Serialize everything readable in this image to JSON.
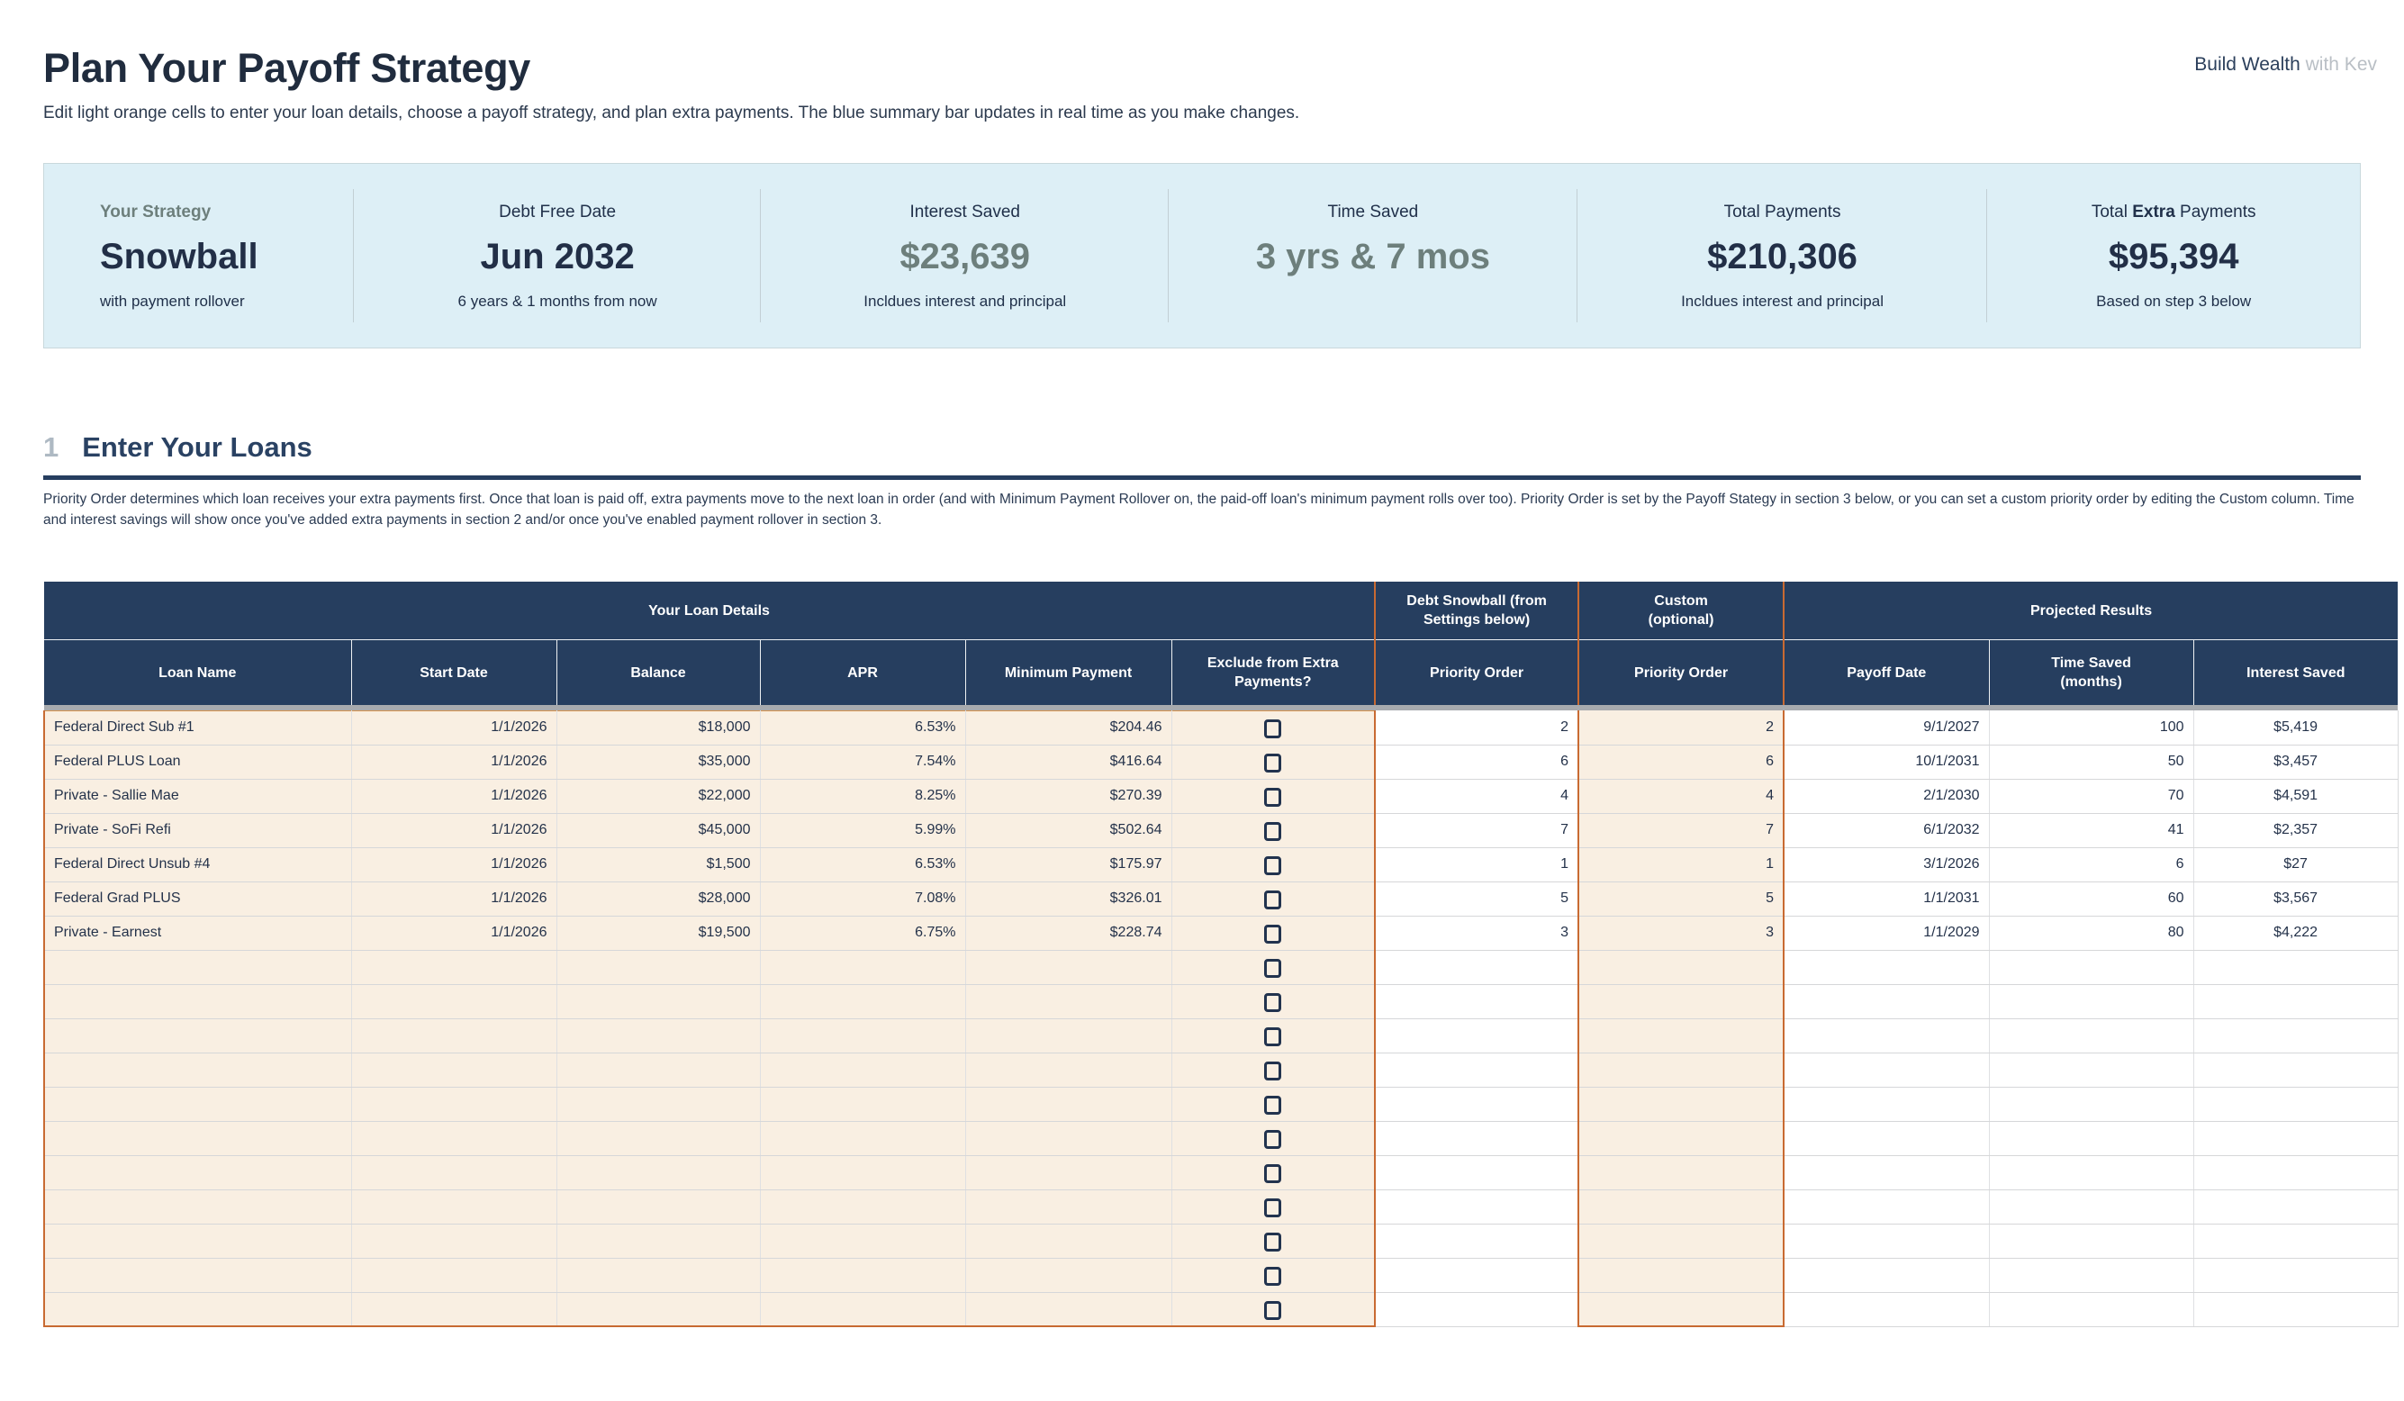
{
  "brand": {
    "dark": "Build Wealth",
    "light": " with Kev"
  },
  "header": {
    "title": "Plan Your Payoff Strategy",
    "subtitle": "Edit light orange cells to enter your loan details, choose a payoff strategy, and plan extra payments. The blue summary bar updates in real time as you make changes."
  },
  "summary": {
    "cards": [
      {
        "label": "Your Strategy",
        "value": "Snowball",
        "sub": "with payment rollover"
      },
      {
        "label": "Debt Free Date",
        "value": "Jun 2032",
        "sub": "6 years & 1 months from now"
      },
      {
        "label": "Interest Saved",
        "value": "$23,639",
        "sub": "Incldues interest and principal"
      },
      {
        "label": "Time Saved",
        "value": "3 yrs & 7 mos",
        "sub": ""
      },
      {
        "label": "Total Payments",
        "value": "$210,306",
        "sub": "Incldues interest and principal"
      },
      {
        "label_parts": [
          "Total ",
          "Extra",
          " Payments"
        ],
        "value": "$95,394",
        "sub": "Based on step 3 below"
      }
    ]
  },
  "section": {
    "number": "1",
    "title": "Enter Your Loans",
    "description": "Priority Order determines which loan receives your extra payments first. Once that loan is paid off, extra payments move to the next loan in order (and with Minimum Payment Rollover on, the paid-off loan's minimum payment rolls over too). Priority Order is set by the Payoff Stategy in section 3 below, or you can set a custom priority order by editing the Custom column. Time and interest savings will show once you've added extra payments in section 2 and/or once you've enabled payment rollover in section 3."
  },
  "table": {
    "group_headers": [
      {
        "label": "Your Loan Details",
        "span": 6
      },
      {
        "label": "Debt Snowball (from Settings below)",
        "span": 1
      },
      {
        "label": "Custom\n(optional)",
        "span": 1
      },
      {
        "label": "Projected Results",
        "span": 3
      }
    ],
    "columns": [
      "Loan Name",
      "Start Date",
      "Balance",
      "APR",
      "Minimum Payment",
      "Exclude from Extra Payments?",
      "Priority Order",
      "Priority Order",
      "Payoff Date",
      "Time Saved\n(months)",
      "Interest Saved"
    ],
    "loans": [
      {
        "name": "Federal Direct Sub #1",
        "start": "1/1/2026",
        "balance": "$18,000",
        "apr": "6.53%",
        "min_payment": "$204.46",
        "excluded": false,
        "snowball_priority": "2",
        "custom_priority": "2",
        "payoff_date": "9/1/2027",
        "time_saved": "100",
        "interest_saved": "$5,419"
      },
      {
        "name": "Federal PLUS Loan",
        "start": "1/1/2026",
        "balance": "$35,000",
        "apr": "7.54%",
        "min_payment": "$416.64",
        "excluded": false,
        "snowball_priority": "6",
        "custom_priority": "6",
        "payoff_date": "10/1/2031",
        "time_saved": "50",
        "interest_saved": "$3,457"
      },
      {
        "name": "Private - Sallie Mae",
        "start": "1/1/2026",
        "balance": "$22,000",
        "apr": "8.25%",
        "min_payment": "$270.39",
        "excluded": false,
        "snowball_priority": "4",
        "custom_priority": "4",
        "payoff_date": "2/1/2030",
        "time_saved": "70",
        "interest_saved": "$4,591"
      },
      {
        "name": "Private - SoFi Refi",
        "start": "1/1/2026",
        "balance": "$45,000",
        "apr": "5.99%",
        "min_payment": "$502.64",
        "excluded": false,
        "snowball_priority": "7",
        "custom_priority": "7",
        "payoff_date": "6/1/2032",
        "time_saved": "41",
        "interest_saved": "$2,357"
      },
      {
        "name": "Federal Direct Unsub #4",
        "start": "1/1/2026",
        "balance": "$1,500",
        "apr": "6.53%",
        "min_payment": "$175.97",
        "excluded": false,
        "snowball_priority": "1",
        "custom_priority": "1",
        "payoff_date": "3/1/2026",
        "time_saved": "6",
        "interest_saved": "$27"
      },
      {
        "name": "Federal Grad PLUS",
        "start": "1/1/2026",
        "balance": "$28,000",
        "apr": "7.08%",
        "min_payment": "$326.01",
        "excluded": false,
        "snowball_priority": "5",
        "custom_priority": "5",
        "payoff_date": "1/1/2031",
        "time_saved": "60",
        "interest_saved": "$3,567"
      },
      {
        "name": "Private - Earnest",
        "start": "1/1/2026",
        "balance": "$19,500",
        "apr": "6.75%",
        "min_payment": "$228.74",
        "excluded": false,
        "snowball_priority": "3",
        "custom_priority": "3",
        "payoff_date": "1/1/2029",
        "time_saved": "80",
        "interest_saved": "$4,222"
      }
    ],
    "empty_rows": 11
  },
  "colors": {
    "header_navy": "#263e5f",
    "editable_cream": "#f9efe2",
    "editable_border_orange": "#c86a32",
    "summary_bg": "#ddeff6",
    "accent_green": "#6d7f7c",
    "text_navy": "#24324a"
  }
}
